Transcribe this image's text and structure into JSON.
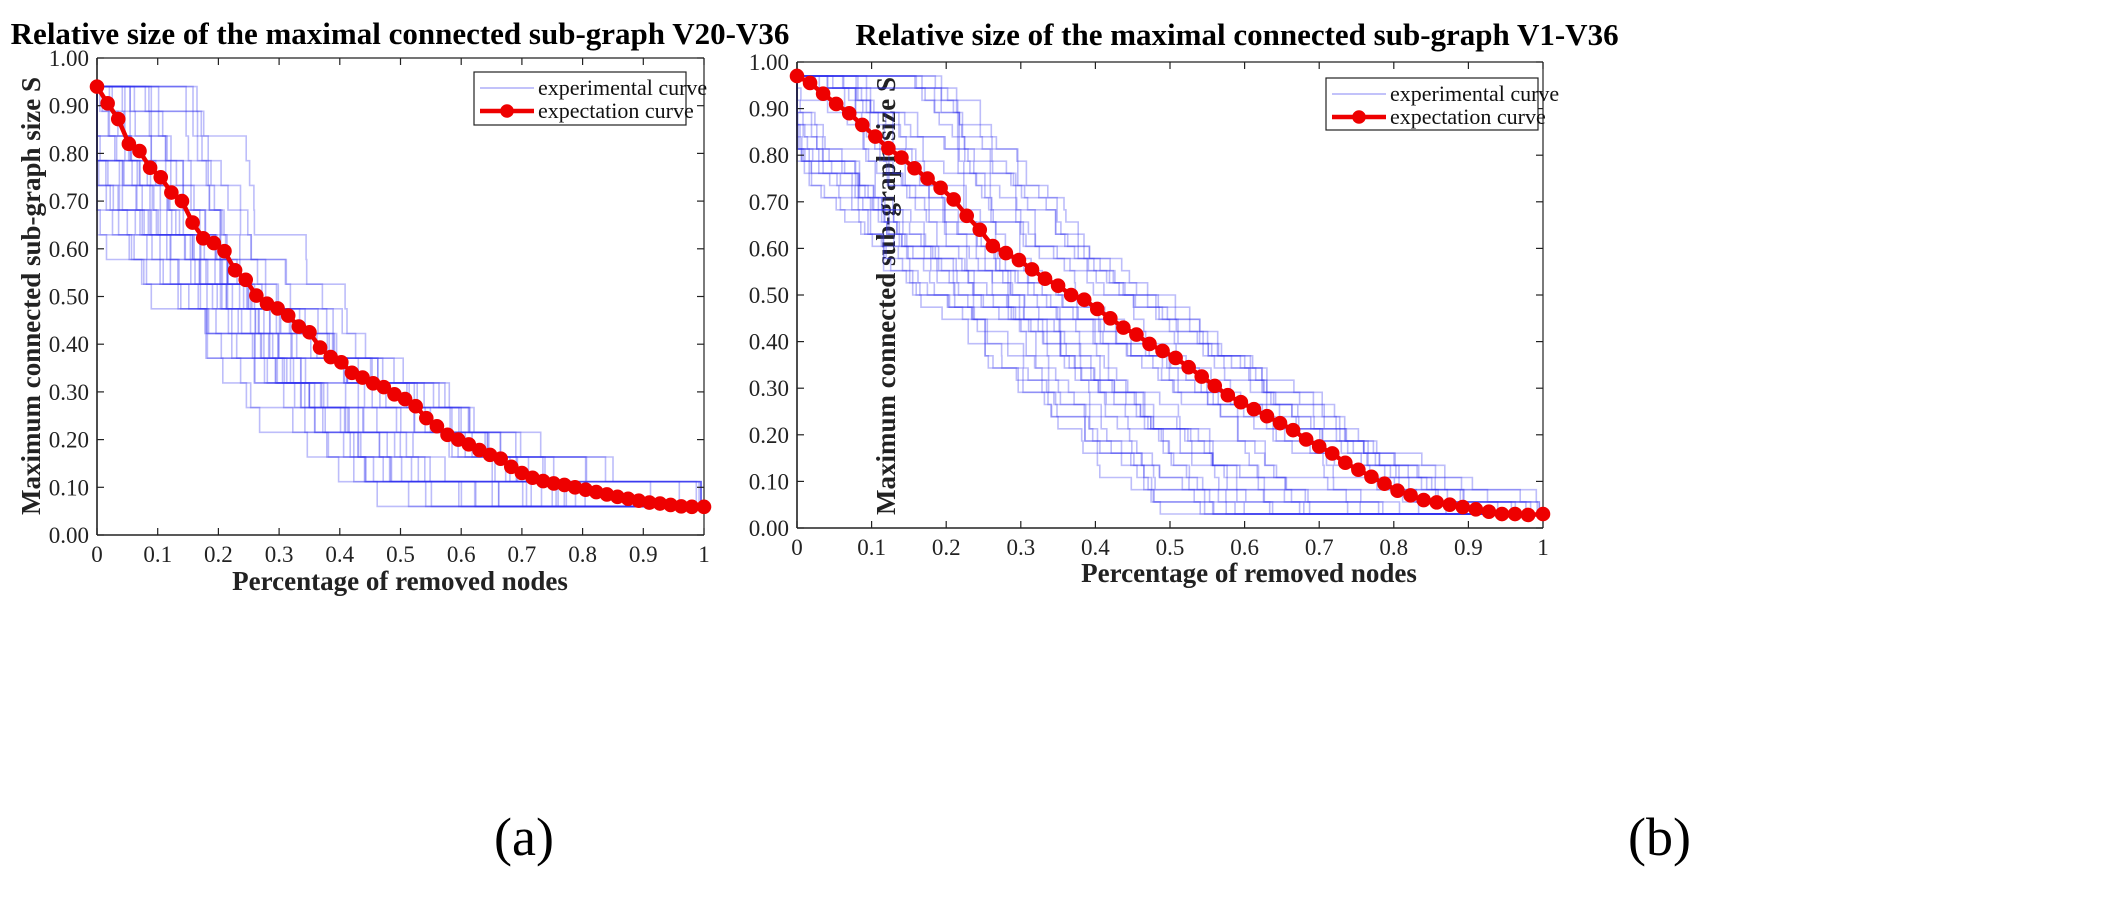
{
  "chart_data": [
    {
      "type": "line",
      "panel_label": "(a)",
      "title": "Relative size of the maximal connected sub-graph  V20-V36",
      "xlabel": "Percentage of removed nodes",
      "ylabel": "Maximum connected sub-graph size S",
      "xlim": [
        0,
        1
      ],
      "ylim": [
        0,
        1
      ],
      "xticks": [
        "0",
        "0.1",
        "0.2",
        "0.3",
        "0.4",
        "0.5",
        "0.6",
        "0.7",
        "0.8",
        "0.9",
        "1"
      ],
      "yticks": [
        "0.00",
        "0.10",
        "0.20",
        "0.30",
        "0.40",
        "0.50",
        "0.60",
        "0.70",
        "0.80",
        "0.90",
        "1.00"
      ],
      "legend": {
        "position": "top-right",
        "entries": [
          "experimental curve",
          "expectation curve"
        ]
      },
      "colors": {
        "experimental": "#3333ee",
        "expectation": "#ee0000"
      },
      "experimental": {
        "count": 30,
        "steps": 17,
        "min": 0.06,
        "max": 0.94,
        "description_seed": 20
      },
      "series": [
        {
          "name": "expectation curve",
          "x": [
            0,
            0.0175,
            0.035,
            0.0525,
            0.07,
            0.0875,
            0.105,
            0.1225,
            0.14,
            0.1575,
            0.175,
            0.1925,
            0.21,
            0.2275,
            0.245,
            0.2625,
            0.28,
            0.2975,
            0.315,
            0.3325,
            0.35,
            0.3675,
            0.385,
            0.4025,
            0.42,
            0.4375,
            0.455,
            0.4725,
            0.49,
            0.5075,
            0.525,
            0.5425,
            0.56,
            0.5775,
            0.595,
            0.6125,
            0.63,
            0.6475,
            0.665,
            0.6825,
            0.7,
            0.7175,
            0.735,
            0.7525,
            0.77,
            0.7875,
            0.805,
            0.8225,
            0.84,
            0.8575,
            0.875,
            0.8925,
            0.91,
            0.9275,
            0.945,
            0.9625,
            0.98,
            1.0
          ],
          "values": [
            0.94,
            0.905,
            0.872,
            0.82,
            0.805,
            0.77,
            0.75,
            0.718,
            0.7,
            0.655,
            0.622,
            0.612,
            0.595,
            0.555,
            0.535,
            0.502,
            0.485,
            0.475,
            0.46,
            0.437,
            0.425,
            0.393,
            0.373,
            0.362,
            0.34,
            0.33,
            0.318,
            0.31,
            0.295,
            0.285,
            0.27,
            0.245,
            0.228,
            0.21,
            0.2,
            0.19,
            0.178,
            0.168,
            0.16,
            0.143,
            0.13,
            0.12,
            0.113,
            0.108,
            0.105,
            0.1,
            0.095,
            0.09,
            0.085,
            0.08,
            0.076,
            0.072,
            0.068,
            0.066,
            0.063,
            0.06,
            0.059,
            0.059
          ]
        }
      ]
    },
    {
      "type": "line",
      "panel_label": "(b)",
      "title": "Relative size of the maximal connected sub-graph  V1-V36",
      "xlabel": "Percentage of removed nodes",
      "ylabel": "Maximum connected sub-graph size S",
      "xlim": [
        0,
        1
      ],
      "ylim": [
        0,
        1
      ],
      "xticks": [
        "0",
        "0.1",
        "0.2",
        "0.3",
        "0.4",
        "0.5",
        "0.6",
        "0.7",
        "0.8",
        "0.9",
        "1"
      ],
      "yticks": [
        "0.00",
        "0.10",
        "0.20",
        "0.30",
        "0.40",
        "0.50",
        "0.60",
        "0.70",
        "0.80",
        "0.90",
        "1.00"
      ],
      "legend": {
        "position": "top-right",
        "entries": [
          "experimental curve",
          "expectation curve"
        ]
      },
      "colors": {
        "experimental": "#3333ee",
        "expectation": "#ee0000"
      },
      "experimental": {
        "count": 30,
        "steps": 36,
        "min": 0.03,
        "max": 0.97,
        "description_seed": 7
      },
      "series": [
        {
          "name": "expectation curve",
          "x": [
            0,
            0.0175,
            0.035,
            0.0525,
            0.07,
            0.0875,
            0.105,
            0.1225,
            0.14,
            0.1575,
            0.175,
            0.1925,
            0.21,
            0.2275,
            0.245,
            0.2625,
            0.28,
            0.2975,
            0.315,
            0.3325,
            0.35,
            0.3675,
            0.385,
            0.4025,
            0.42,
            0.4375,
            0.455,
            0.4725,
            0.49,
            0.5075,
            0.525,
            0.5425,
            0.56,
            0.5775,
            0.595,
            0.6125,
            0.63,
            0.6475,
            0.665,
            0.6825,
            0.7,
            0.7175,
            0.735,
            0.7525,
            0.77,
            0.7875,
            0.805,
            0.8225,
            0.84,
            0.8575,
            0.875,
            0.8925,
            0.91,
            0.9275,
            0.945,
            0.9625,
            0.98,
            1.0
          ],
          "values": [
            0.97,
            0.955,
            0.932,
            0.91,
            0.89,
            0.865,
            0.84,
            0.815,
            0.795,
            0.772,
            0.75,
            0.73,
            0.705,
            0.67,
            0.64,
            0.605,
            0.59,
            0.575,
            0.555,
            0.535,
            0.52,
            0.5,
            0.49,
            0.47,
            0.45,
            0.43,
            0.415,
            0.395,
            0.38,
            0.365,
            0.345,
            0.325,
            0.305,
            0.285,
            0.27,
            0.255,
            0.24,
            0.225,
            0.21,
            0.19,
            0.175,
            0.16,
            0.14,
            0.125,
            0.11,
            0.095,
            0.08,
            0.07,
            0.06,
            0.055,
            0.05,
            0.045,
            0.04,
            0.035,
            0.03,
            0.03,
            0.028,
            0.03
          ]
        }
      ]
    }
  ]
}
